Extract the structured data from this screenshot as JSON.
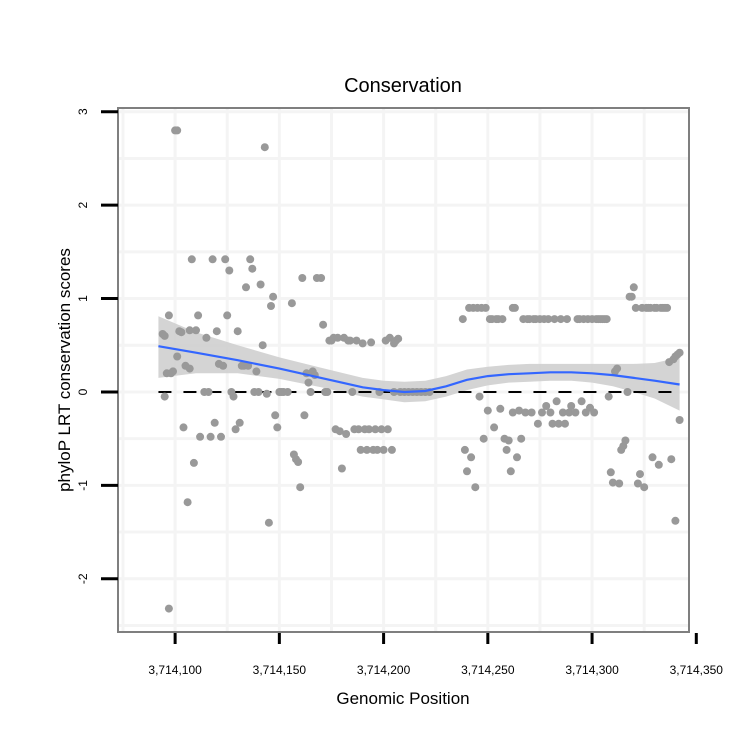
{
  "chart_data": {
    "type": "scatter",
    "title": "Conservation",
    "xlabel": "Genomic Position",
    "ylabel": "phyloP LRT conservation scores",
    "xlim": [
      3714072.6,
      3714346.5
    ],
    "ylim": [
      -2.57,
      3.04
    ],
    "x_ticks": [
      3714100,
      3714150,
      3714200,
      3714250,
      3714300,
      3714350
    ],
    "x_tick_labels": [
      "3,714,100",
      "3,714,150",
      "3,714,200",
      "3,714,250",
      "3,714,300",
      "3,714,350"
    ],
    "y_ticks": [
      3,
      2,
      1,
      0,
      -1,
      -2
    ],
    "y_tick_labels": [
      "3",
      "2",
      "1",
      "0",
      "-1",
      "-2"
    ],
    "grid": true,
    "reference_line": {
      "y": 0,
      "style": "dashed",
      "color": "#000000"
    },
    "point_color": "#999999",
    "smooth_color": "#3366ff",
    "ribbon_color": "#cccccc",
    "points": [
      [
        3714094,
        0.62
      ],
      [
        3714095,
        0.6
      ],
      [
        3714095,
        -0.05
      ],
      [
        3714096,
        0.2
      ],
      [
        3714097,
        -2.32
      ],
      [
        3714097,
        0.82
      ],
      [
        3714098,
        0.2
      ],
      [
        3714099,
        0.22
      ],
      [
        3714100,
        2.8
      ],
      [
        3714101,
        2.8
      ],
      [
        3714101,
        0.38
      ],
      [
        3714102,
        0.65
      ],
      [
        3714103,
        0.64
      ],
      [
        3714104,
        -0.38
      ],
      [
        3714105,
        0.28
      ],
      [
        3714106,
        -1.18
      ],
      [
        3714107,
        0.25
      ],
      [
        3714107,
        0.66
      ],
      [
        3714108,
        1.42
      ],
      [
        3714109,
        -0.76
      ],
      [
        3714110,
        0.66
      ],
      [
        3714111,
        0.82
      ],
      [
        3714112,
        -0.48
      ],
      [
        3714114,
        0.0
      ],
      [
        3714115,
        0.58
      ],
      [
        3714116,
        0.0
      ],
      [
        3714117,
        -0.48
      ],
      [
        3714118,
        1.42
      ],
      [
        3714119,
        -0.33
      ],
      [
        3714120,
        0.65
      ],
      [
        3714121,
        0.3
      ],
      [
        3714122,
        -0.48
      ],
      [
        3714123,
        0.28
      ],
      [
        3714124,
        1.42
      ],
      [
        3714125,
        0.82
      ],
      [
        3714126,
        1.3
      ],
      [
        3714127,
        0.0
      ],
      [
        3714128,
        -0.05
      ],
      [
        3714129,
        -0.4
      ],
      [
        3714130,
        0.65
      ],
      [
        3714131,
        -0.33
      ],
      [
        3714132,
        0.28
      ],
      [
        3714133,
        0.28
      ],
      [
        3714134,
        1.12
      ],
      [
        3714135,
        0.28
      ],
      [
        3714136,
        1.42
      ],
      [
        3714137,
        1.32
      ],
      [
        3714138,
        0.0
      ],
      [
        3714139,
        0.22
      ],
      [
        3714140,
        0.0
      ],
      [
        3714141,
        1.15
      ],
      [
        3714142,
        0.5
      ],
      [
        3714143,
        2.62
      ],
      [
        3714144,
        -0.02
      ],
      [
        3714145,
        -1.4
      ],
      [
        3714146,
        0.92
      ],
      [
        3714147,
        1.02
      ],
      [
        3714148,
        -0.25
      ],
      [
        3714149,
        -0.38
      ],
      [
        3714150,
        0.0
      ],
      [
        3714151,
        0.0
      ],
      [
        3714152,
        0.0
      ],
      [
        3714154,
        0.0
      ],
      [
        3714156,
        0.95
      ],
      [
        3714157,
        -0.67
      ],
      [
        3714158,
        -0.72
      ],
      [
        3714159,
        -0.75
      ],
      [
        3714160,
        -1.02
      ],
      [
        3714161,
        1.22
      ],
      [
        3714162,
        -0.25
      ],
      [
        3714163,
        0.2
      ],
      [
        3714164,
        0.1
      ],
      [
        3714165,
        0.0
      ],
      [
        3714166,
        0.22
      ],
      [
        3714167,
        0.18
      ],
      [
        3714168,
        1.22
      ],
      [
        3714170,
        1.22
      ],
      [
        3714171,
        0.72
      ],
      [
        3714172,
        0.0
      ],
      [
        3714173,
        0.0
      ],
      [
        3714174,
        0.55
      ],
      [
        3714175,
        0.55
      ],
      [
        3714176,
        0.58
      ],
      [
        3714177,
        -0.4
      ],
      [
        3714178,
        0.58
      ],
      [
        3714179,
        -0.42
      ],
      [
        3714180,
        -0.82
      ],
      [
        3714181,
        0.58
      ],
      [
        3714182,
        -0.45
      ],
      [
        3714183,
        0.55
      ],
      [
        3714184,
        0.55
      ],
      [
        3714185,
        0.0
      ],
      [
        3714186,
        -0.4
      ],
      [
        3714187,
        0.55
      ],
      [
        3714188,
        -0.4
      ],
      [
        3714189,
        -0.62
      ],
      [
        3714190,
        0.52
      ],
      [
        3714191,
        -0.4
      ],
      [
        3714192,
        -0.62
      ],
      [
        3714193,
        -0.4
      ],
      [
        3714194,
        0.53
      ],
      [
        3714195,
        -0.62
      ],
      [
        3714196,
        -0.4
      ],
      [
        3714197,
        -0.62
      ],
      [
        3714198,
        0.0
      ],
      [
        3714199,
        -0.4
      ],
      [
        3714200,
        -0.62
      ],
      [
        3714201,
        0.55
      ],
      [
        3714202,
        -0.4
      ],
      [
        3714203,
        0.58
      ],
      [
        3714204,
        -0.62
      ],
      [
        3714205,
        0.52
      ],
      [
        3714206,
        0.55
      ],
      [
        3714207,
        0.57
      ],
      [
        3714205,
        0.0
      ],
      [
        3714208,
        0.0
      ],
      [
        3714210,
        0.0
      ],
      [
        3714212,
        0.0
      ],
      [
        3714214,
        0.0
      ],
      [
        3714216,
        0.0
      ],
      [
        3714218,
        0.0
      ],
      [
        3714220,
        0.0
      ],
      [
        3714222,
        0.0
      ],
      [
        3714238,
        0.78
      ],
      [
        3714239,
        -0.62
      ],
      [
        3714240,
        -0.85
      ],
      [
        3714241,
        0.9
      ],
      [
        3714242,
        -0.7
      ],
      [
        3714243,
        0.9
      ],
      [
        3714244,
        -1.02
      ],
      [
        3714245,
        0.9
      ],
      [
        3714246,
        -0.05
      ],
      [
        3714247,
        0.9
      ],
      [
        3714248,
        -0.5
      ],
      [
        3714249,
        0.9
      ],
      [
        3714250,
        -0.2
      ],
      [
        3714251,
        0.78
      ],
      [
        3714252,
        0.78
      ],
      [
        3714253,
        -0.38
      ],
      [
        3714254,
        0.78
      ],
      [
        3714255,
        0.78
      ],
      [
        3714256,
        -0.18
      ],
      [
        3714257,
        0.78
      ],
      [
        3714258,
        -0.5
      ],
      [
        3714259,
        -0.62
      ],
      [
        3714260,
        -0.52
      ],
      [
        3714261,
        -0.85
      ],
      [
        3714262,
        0.9
      ],
      [
        3714262,
        -0.22
      ],
      [
        3714263,
        0.9
      ],
      [
        3714264,
        -0.7
      ],
      [
        3714265,
        -0.2
      ],
      [
        3714266,
        -0.5
      ],
      [
        3714267,
        0.78
      ],
      [
        3714268,
        -0.22
      ],
      [
        3714269,
        0.78
      ],
      [
        3714270,
        0.78
      ],
      [
        3714271,
        -0.22
      ],
      [
        3714272,
        0.78
      ],
      [
        3714273,
        0.78
      ],
      [
        3714274,
        -0.34
      ],
      [
        3714275,
        0.78
      ],
      [
        3714276,
        -0.22
      ],
      [
        3714277,
        0.78
      ],
      [
        3714278,
        -0.15
      ],
      [
        3714279,
        0.78
      ],
      [
        3714280,
        -0.22
      ],
      [
        3714281,
        -0.34
      ],
      [
        3714282,
        0.78
      ],
      [
        3714283,
        -0.1
      ],
      [
        3714284,
        -0.34
      ],
      [
        3714285,
        0.78
      ],
      [
        3714286,
        -0.22
      ],
      [
        3714287,
        -0.34
      ],
      [
        3714288,
        0.78
      ],
      [
        3714289,
        -0.22
      ],
      [
        3714290,
        -0.15
      ],
      [
        3714292,
        -0.22
      ],
      [
        3714293,
        0.78
      ],
      [
        3714294,
        0.78
      ],
      [
        3714295,
        -0.1
      ],
      [
        3714296,
        0.78
      ],
      [
        3714297,
        -0.22
      ],
      [
        3714298,
        0.78
      ],
      [
        3714299,
        -0.17
      ],
      [
        3714300,
        0.78
      ],
      [
        3714301,
        -0.22
      ],
      [
        3714302,
        0.78
      ],
      [
        3714303,
        0.78
      ],
      [
        3714304,
        0.78
      ],
      [
        3714305,
        0.78
      ],
      [
        3714306,
        0.78
      ],
      [
        3714307,
        0.78
      ],
      [
        3714308,
        -0.05
      ],
      [
        3714309,
        -0.86
      ],
      [
        3714310,
        -0.97
      ],
      [
        3714311,
        0.22
      ],
      [
        3714312,
        0.25
      ],
      [
        3714313,
        -0.98
      ],
      [
        3714314,
        -0.62
      ],
      [
        3714315,
        -0.58
      ],
      [
        3714316,
        -0.52
      ],
      [
        3714317,
        0.0
      ],
      [
        3714318,
        1.02
      ],
      [
        3714319,
        1.02
      ],
      [
        3714320,
        1.12
      ],
      [
        3714321,
        0.9
      ],
      [
        3714322,
        -0.98
      ],
      [
        3714323,
        -0.88
      ],
      [
        3714324,
        0.9
      ],
      [
        3714325,
        -1.02
      ],
      [
        3714326,
        0.9
      ],
      [
        3714327,
        0.9
      ],
      [
        3714328,
        0.9
      ],
      [
        3714329,
        -0.7
      ],
      [
        3714330,
        0.9
      ],
      [
        3714331,
        0.9
      ],
      [
        3714332,
        -0.78
      ],
      [
        3714333,
        0.9
      ],
      [
        3714334,
        0.9
      ],
      [
        3714335,
        0.9
      ],
      [
        3714336,
        0.9
      ],
      [
        3714337,
        0.32
      ],
      [
        3714338,
        -0.72
      ],
      [
        3714339,
        0.35
      ],
      [
        3714340,
        -1.38
      ],
      [
        3714340,
        0.38
      ],
      [
        3714341,
        0.4
      ],
      [
        3714342,
        0.42
      ],
      [
        3714342,
        -0.3
      ]
    ],
    "smooth": {
      "x": [
        3714092,
        3714110,
        3714130,
        3714150,
        3714170,
        3714190,
        3714200,
        3714210,
        3714220,
        3714230,
        3714240,
        3714250,
        3714260,
        3714270,
        3714280,
        3714290,
        3714300,
        3714310,
        3714320,
        3714330,
        3714342
      ],
      "y": [
        0.49,
        0.42,
        0.34,
        0.25,
        0.15,
        0.05,
        0.02,
        0.0,
        0.01,
        0.06,
        0.13,
        0.17,
        0.19,
        0.2,
        0.21,
        0.21,
        0.2,
        0.18,
        0.15,
        0.12,
        0.08
      ],
      "lower": [
        0.15,
        0.2,
        0.2,
        0.14,
        0.05,
        -0.05,
        -0.08,
        -0.11,
        -0.1,
        -0.05,
        0.02,
        0.07,
        0.1,
        0.11,
        0.12,
        0.12,
        0.1,
        0.06,
        0.0,
        -0.07,
        -0.2
      ],
      "upper": [
        0.81,
        0.64,
        0.5,
        0.37,
        0.26,
        0.15,
        0.12,
        0.11,
        0.12,
        0.17,
        0.24,
        0.27,
        0.29,
        0.3,
        0.3,
        0.3,
        0.3,
        0.3,
        0.3,
        0.31,
        0.37
      ]
    }
  }
}
